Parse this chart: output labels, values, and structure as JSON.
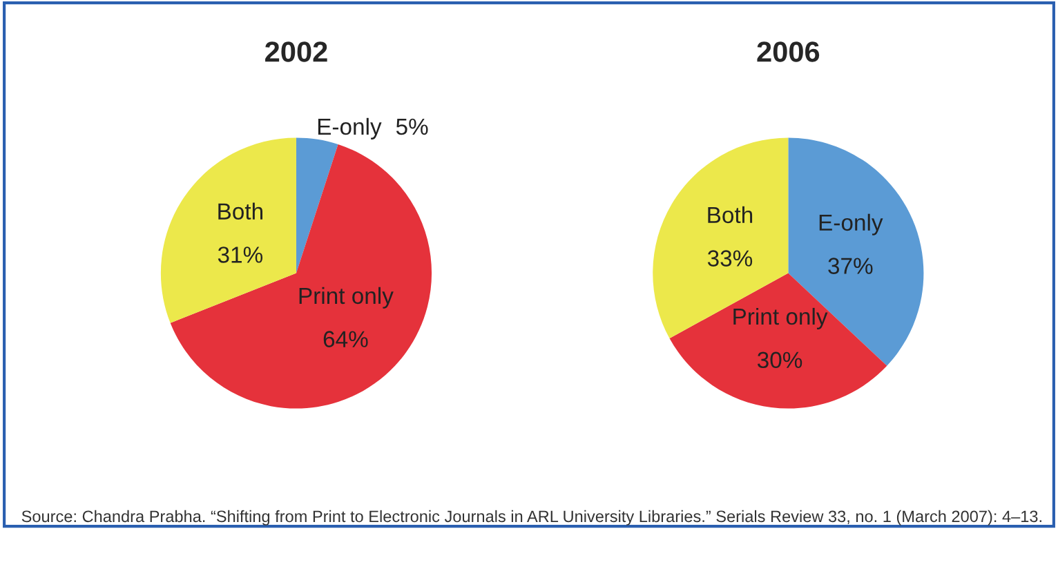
{
  "chart_data": [
    {
      "type": "pie",
      "title": "2002",
      "categories": [
        "E-only",
        "Print only",
        "Both"
      ],
      "values": [
        5,
        64,
        31
      ],
      "value_labels": [
        "5%",
        "64%",
        "31%"
      ],
      "colors": [
        "#5b9bd5",
        "#e5323b",
        "#ece84b"
      ],
      "legend": false,
      "annotations": [
        "Source: Chandra Prabha. “Shifting from Print to Electronic Journals in ARL University Libraries.” Serials Review 33, no. 1 (March 2007): 4–13."
      ]
    },
    {
      "type": "pie",
      "title": "2006",
      "categories": [
        "E-only",
        "Print only",
        "Both"
      ],
      "values": [
        37,
        30,
        33
      ],
      "value_labels": [
        "37%",
        "30%",
        "33%"
      ],
      "colors": [
        "#5b9bd5",
        "#e5323b",
        "#ece84b"
      ],
      "legend": false
    }
  ]
}
